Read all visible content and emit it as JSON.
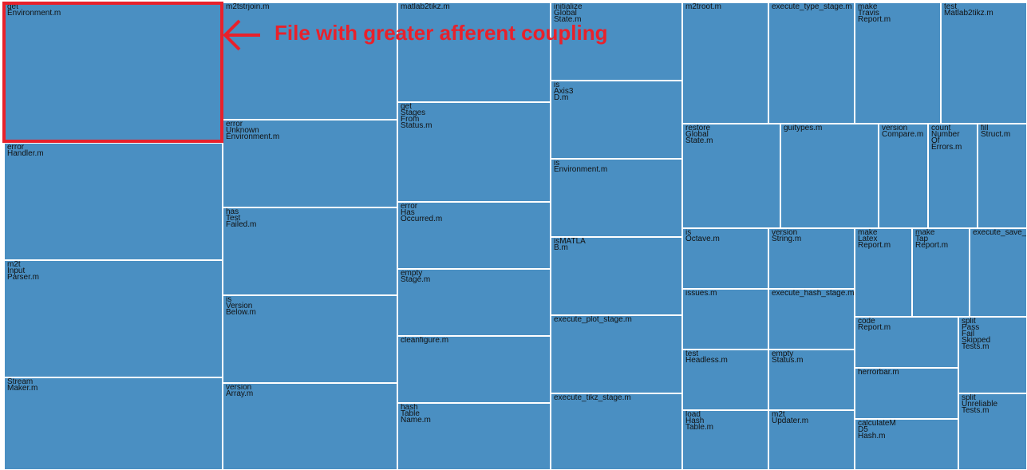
{
  "chart_data": {
    "type": "treemap",
    "title": "",
    "highlighted_leaf": "get\nEnvironment.m",
    "annotation": "File with greater afferent coupling",
    "colors": {
      "cell": "#4a8fc2",
      "border": "#ffffff",
      "highlight": "#e8212b"
    },
    "columns": [
      {
        "value": 4.0,
        "leaves": [
          {
            "label": "get\nEnvironment.m",
            "value": 1.2
          },
          {
            "label": "error\nHandler.m",
            "value": 1.0
          },
          {
            "label": "m2t\nInput\nParser.m",
            "value": 1.0
          },
          {
            "label": "Stream\nMaker.m",
            "value": 0.8
          }
        ]
      },
      {
        "value": 3.2,
        "leaves": [
          {
            "label": "m2tstrjoin.m",
            "value": 1.0
          },
          {
            "label": "error\nUnknown\nEnvironment.m",
            "value": 0.75
          },
          {
            "label": "has\nTest\nFailed.m",
            "value": 0.75
          },
          {
            "label": "is\nVersion\nBelow.m",
            "value": 0.75
          },
          {
            "label": "version\nArray.m",
            "value": 0.75
          }
        ]
      },
      {
        "value": 2.8,
        "leaves": [
          {
            "label": "matlab2tikz.m",
            "value": 1.0
          },
          {
            "label": "get\nStages\nFrom\nStatus.m",
            "value": 1.0
          },
          {
            "label": "error\nHas\nOccurred.m",
            "value": 0.67
          },
          {
            "label": "empty\nStage.m",
            "value": 0.67
          },
          {
            "label": "cleanfigure.m",
            "value": 0.67
          },
          {
            "label": "hash\nTable\nName.m",
            "value": 0.67
          }
        ]
      },
      {
        "value": 2.4,
        "leaves": [
          {
            "label": "initialize\nGlobal\nState.m",
            "value": 1.0
          },
          {
            "label": "is\nAxis3\nD.m",
            "value": 1.0
          },
          {
            "label": "is\nEnvironment.m",
            "value": 1.0
          },
          {
            "label": "isMATLA\nB.m",
            "value": 1.0
          },
          {
            "label": "execute_plot_stage.m",
            "value": 1.0
          },
          {
            "label": "execute_tikz_stage.m",
            "value": 1.0
          }
        ]
      }
    ],
    "right_block": {
      "value": 6.3,
      "rows": [
        {
          "value": 1.5,
          "leaves": [
            {
              "label": "m2troot.m",
              "value": 1.0
            },
            {
              "label": "execute_type_stage.m",
              "value": 1.0
            },
            {
              "label": "make\nTravis\nReport.m",
              "value": 1.0
            },
            {
              "label": "test\nMatlab2tikz.m",
              "value": 1.0
            }
          ]
        },
        {
          "value": 1.3,
          "leaves": [
            {
              "label": "restore\nGlobal\nState.m",
              "value": 1.0
            },
            {
              "label": "guitypes.m",
              "value": 1.0
            },
            {
              "label": "version\nCompare.m",
              "value": 0.5
            },
            {
              "label": "count\nNumber\nOf\nErrors.m",
              "value": 0.5
            },
            {
              "label": "fill\nStruct.m",
              "value": 0.5
            }
          ]
        },
        {
          "value": 3.0,
          "columns": [
            {
              "value": 1.0,
              "leaves": [
                {
                  "label": "is\nOctave.m",
                  "value": 1.0
                },
                {
                  "label": "issues.m",
                  "value": 1.0
                },
                {
                  "label": "test\nHeadless.m",
                  "value": 1.0
                },
                {
                  "label": "load\nHash\nTable.m",
                  "value": 1.0
                }
              ]
            },
            {
              "value": 1.0,
              "leaves": [
                {
                  "label": "version\nString.m",
                  "value": 1.0
                },
                {
                  "label": "execute_hash_stage.m",
                  "value": 1.0
                },
                {
                  "label": "empty\nStatus.m",
                  "value": 1.0
                },
                {
                  "label": "m2t\nUpdater.m",
                  "value": 1.0
                }
              ]
            },
            {
              "value": 2.0,
              "rows": [
                {
                  "value": 1.1,
                  "leaves": [
                    {
                      "label": "make\nLatex\nReport.m",
                      "value": 1.0
                    },
                    {
                      "label": "make\nTap\nReport.m",
                      "value": 1.0
                    },
                    {
                      "label": "execute_save_stage.m",
                      "value": 1.0
                    }
                  ]
                },
                {
                  "value": 1.9,
                  "columns": [
                    {
                      "value": 1.8,
                      "leaves": [
                        {
                          "label": "code\nReport.m",
                          "value": 1.0
                        },
                        {
                          "label": "herrorbar.m",
                          "value": 1.0
                        },
                        {
                          "label": "calculateM\nD5\nHash.m",
                          "value": 1.0
                        }
                      ]
                    },
                    {
                      "value": 1.2,
                      "leaves": [
                        {
                          "label": "split\nPass\nFail\nSkipped\nTests.m",
                          "value": 1.0
                        },
                        {
                          "label": "split\nUnreliable\nTests.m",
                          "value": 1.0
                        }
                      ]
                    }
                  ]
                }
              ]
            }
          ]
        }
      ]
    }
  }
}
